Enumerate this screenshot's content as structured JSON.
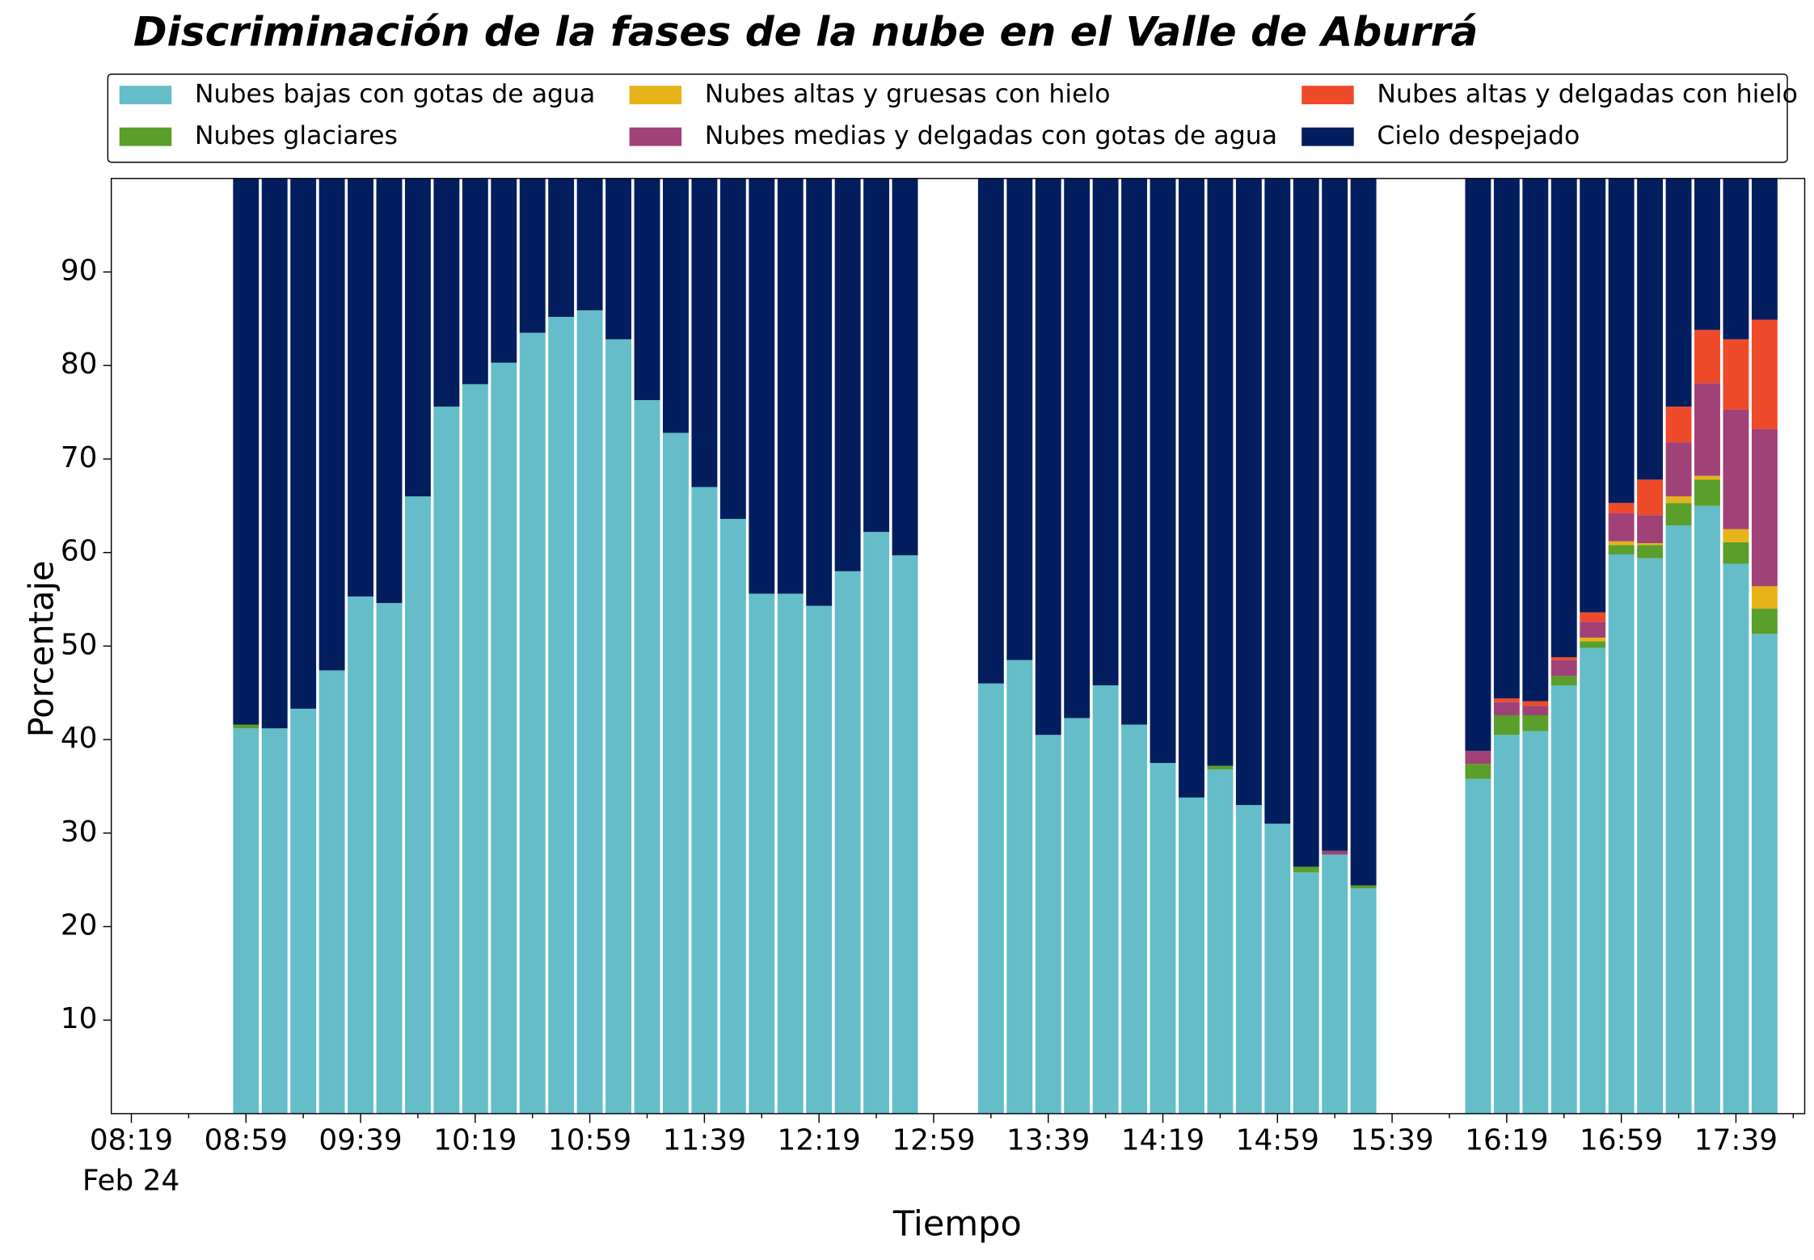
{
  "chart_data": {
    "type": "stacked_bar",
    "title": "Discriminación de la fases de la nube en el Valle de Aburrá",
    "xlabel": "Tiempo",
    "ylabel": "Porcentaje",
    "date_label": "Feb 24",
    "x": [
      "08:59",
      "09:09",
      "09:19",
      "09:29",
      "09:39",
      "09:49",
      "09:59",
      "10:09",
      "10:19",
      "10:29",
      "10:39",
      "10:49",
      "10:59",
      "11:09",
      "11:19",
      "11:29",
      "11:39",
      "11:49",
      "11:59",
      "12:09",
      "12:19",
      "12:29",
      "12:39",
      "12:49",
      "13:19",
      "13:29",
      "13:39",
      "13:49",
      "13:59",
      "14:09",
      "14:19",
      "14:29",
      "14:39",
      "14:49",
      "14:59",
      "15:09",
      "15:19",
      "15:29",
      "16:09",
      "16:19",
      "16:29",
      "16:39",
      "16:49",
      "16:59",
      "17:09",
      "17:19",
      "17:29",
      "17:39",
      "17:49"
    ],
    "bar_width_minutes": 9,
    "xlim": [
      "08:12",
      "18:03"
    ],
    "xticks": [
      "08:19",
      "08:59",
      "09:39",
      "10:19",
      "10:59",
      "11:39",
      "12:19",
      "12:59",
      "13:39",
      "14:19",
      "14:59",
      "15:39",
      "16:19",
      "16:59",
      "17:39"
    ],
    "xminorticks": [
      "08:39",
      "09:19",
      "09:59",
      "10:39",
      "11:19",
      "11:59",
      "12:39",
      "13:19",
      "13:59",
      "14:39",
      "15:19",
      "15:59",
      "16:39",
      "17:19",
      "17:59"
    ],
    "ylim": [
      0,
      100
    ],
    "yticks": [
      10,
      20,
      30,
      40,
      50,
      60,
      70,
      80,
      90
    ],
    "legend": "top",
    "series": [
      {
        "name": "Nubes bajas con gotas de agua",
        "color": "#64bdc8",
        "values": [
          41.2,
          41.2,
          43.3,
          47.4,
          55.3,
          54.6,
          66,
          75.6,
          78,
          80.3,
          83.5,
          85.2,
          85.9,
          82.8,
          76.3,
          72.8,
          67,
          63.6,
          55.6,
          55.6,
          54.3,
          58,
          62.2,
          59.7,
          46,
          48.5,
          40.5,
          42.3,
          45.8,
          41.6,
          37.5,
          33.8,
          36.8,
          33,
          31,
          25.8,
          27.7,
          24.1,
          35.8,
          40.5,
          40.9,
          45.8,
          49.8,
          59.8,
          59.4,
          62.9,
          65,
          58.8,
          51.3
        ]
      },
      {
        "name": "Nubes glaciares",
        "color": "#5a9e2c",
        "values": [
          0.4,
          0,
          0,
          0,
          0,
          0,
          0,
          0,
          0,
          0,
          0,
          0,
          0,
          0,
          0,
          0,
          0,
          0,
          0,
          0,
          0,
          0,
          0,
          0,
          0,
          0,
          0,
          0,
          0,
          0,
          0,
          0,
          0.4,
          0,
          0,
          0.6,
          0,
          0.3,
          1.6,
          2.1,
          1.7,
          1.0,
          0.7,
          1.0,
          1.4,
          2.4,
          2.8,
          2.3,
          2.7
        ]
      },
      {
        "name": "Nubes altas y gruesas con hielo",
        "color": "#e6b319",
        "values": [
          0,
          0,
          0,
          0,
          0,
          0,
          0,
          0,
          0,
          0,
          0,
          0,
          0,
          0,
          0,
          0,
          0,
          0,
          0,
          0,
          0,
          0,
          0,
          0,
          0,
          0,
          0,
          0,
          0,
          0,
          0,
          0,
          0,
          0,
          0,
          0,
          0,
          0,
          0,
          0,
          0,
          0,
          0.4,
          0.4,
          0.2,
          0.7,
          0.4,
          1.4,
          2.4
        ]
      },
      {
        "name": "Nubes medias y delgadas con gotas de agua",
        "color": "#a04278",
        "values": [
          0,
          0,
          0,
          0,
          0,
          0,
          0,
          0,
          0,
          0,
          0,
          0,
          0,
          0,
          0,
          0,
          0,
          0,
          0,
          0,
          0,
          0,
          0,
          0,
          0,
          0,
          0,
          0,
          0,
          0,
          0,
          0,
          0,
          0,
          0,
          0,
          0.4,
          0,
          1.4,
          1.4,
          1.0,
          1.7,
          1.7,
          3.0,
          3.0,
          5.8,
          9.9,
          12.8,
          16.8
        ]
      },
      {
        "name": "Nubes altas y delgadas con hielo",
        "color": "#ef4a2a",
        "values": [
          0,
          0,
          0,
          0,
          0,
          0,
          0,
          0,
          0,
          0,
          0,
          0,
          0,
          0,
          0,
          0,
          0,
          0,
          0,
          0,
          0,
          0,
          0,
          0,
          0,
          0,
          0,
          0,
          0,
          0,
          0,
          0,
          0,
          0,
          0,
          0,
          0,
          0,
          0,
          0.4,
          0.5,
          0.3,
          1.0,
          1.1,
          3.8,
          3.8,
          5.7,
          7.5,
          11.7
        ]
      },
      {
        "name": "Cielo despejado",
        "color": "#031e5e",
        "values": [
          58.4,
          58.8,
          56.7,
          52.6,
          44.7,
          45.4,
          34,
          24.4,
          22,
          19.7,
          16.5,
          14.8,
          14.1,
          17.2,
          23.7,
          27.2,
          33,
          36.4,
          44.4,
          44.4,
          45.7,
          42,
          37.8,
          40.3,
          54,
          51.5,
          59.5,
          57.7,
          54.2,
          58.4,
          62.5,
          66.2,
          62.8,
          67,
          69,
          73.6,
          71.9,
          75.6,
          61.2,
          55.6,
          55.9,
          51.2,
          46.4,
          34.7,
          32.2,
          24.4,
          16.2,
          17.2,
          15.1
        ]
      }
    ]
  }
}
